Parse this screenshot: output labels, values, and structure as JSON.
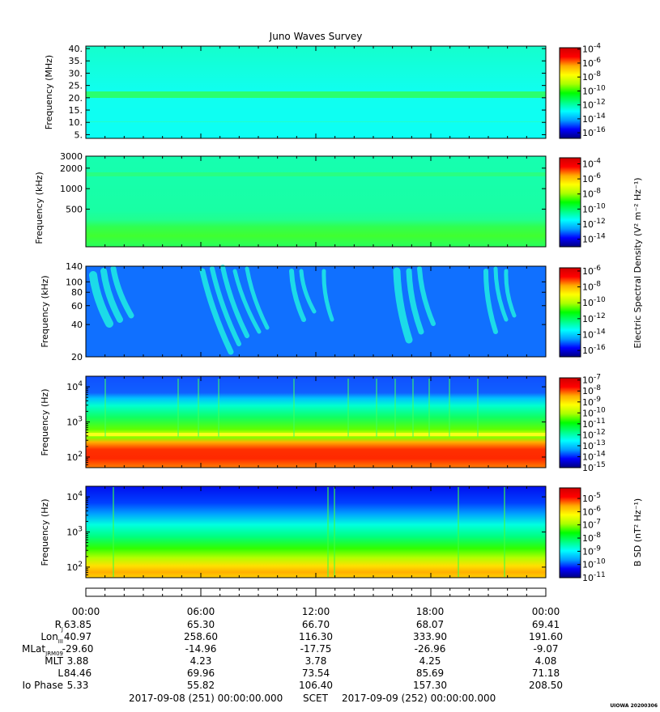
{
  "title": "Juno Waves Survey",
  "footer": {
    "start_time": "2017-09-08 (251) 00:00:00.000",
    "scet": "SCET",
    "end_time": "2017-09-09 (252) 00:00:00.000",
    "stamp": "UIOWA 20200306"
  },
  "colorscale_stops": [
    "#00007f",
    "#0000ff",
    "#00a0ff",
    "#00ffff",
    "#00ff80",
    "#00ff00",
    "#aaff00",
    "#ffff00",
    "#ffaa00",
    "#ff0000",
    "#d00000"
  ],
  "shared_colorbar_label": "Electric Spectral Density (V² m⁻² Hz⁻¹)",
  "chart_data": [
    {
      "type": "heatmap",
      "title": "Juno Waves Survey",
      "ylabel": "Frequency (MHz)",
      "yscale": "linear",
      "ylim": [
        3.5,
        41
      ],
      "yticks": [
        5,
        10,
        15,
        20,
        25,
        30,
        35,
        40
      ],
      "yticklabels": [
        "5.",
        "10.",
        "15.",
        "20.",
        "25.",
        "30.",
        "35.",
        "40."
      ],
      "colorbar": {
        "ticks": [
          "10^-4",
          "10^-6",
          "10^-8",
          "10^-10",
          "10^-12",
          "10^-14",
          "10^-16"
        ],
        "range_exp": [
          -16.8,
          -3.8
        ]
      },
      "features": "uniform cyan background (~1e-13) with a persistent green band near 21 MHz"
    },
    {
      "type": "heatmap",
      "ylabel": "Frequency (kHz)",
      "yscale": "log",
      "ylim": [
        140,
        3000
      ],
      "yticks": [
        500,
        1000,
        2000,
        3000
      ],
      "yticklabels": [
        "500",
        "1000",
        "2000",
        "3000"
      ],
      "colorbar": {
        "ticks": [
          "10^-4",
          "10^-6",
          "10^-8",
          "10^-10",
          "10^-12",
          "10^-14"
        ],
        "range_exp": [
          -15.0,
          -3.2
        ]
      },
      "features": "green-cyan background, faint line near 1700 kHz, brighter green band below ~250 kHz"
    },
    {
      "type": "heatmap",
      "ylabel": "Frequency (kHz)",
      "yscale": "log",
      "ylim": [
        20,
        140
      ],
      "yticks": [
        20,
        40,
        60,
        80,
        100,
        140
      ],
      "yticklabels": [
        "20",
        "40",
        "60",
        "80",
        "100",
        "140"
      ],
      "colorbar": {
        "ticks": [
          "10^-6",
          "10^-8",
          "10^-10",
          "10^-12",
          "10^-14",
          "10^-16"
        ],
        "range_exp": [
          -16.8,
          -5.6
        ]
      },
      "features": "blue background with cyan/green drifting emission arcs in several groups"
    },
    {
      "type": "heatmap",
      "ylabel": "Frequency (Hz)",
      "yscale": "log",
      "ylim": [
        50,
        20000
      ],
      "yticks": [
        100,
        1000,
        10000
      ],
      "yticklabels": [
        "10^2",
        "10^3",
        "10^4"
      ],
      "colorbar": {
        "ticks": [
          "10^-7",
          "10^-8",
          "10^-9",
          "10^-10",
          "10^-11",
          "10^-12",
          "10^-13",
          "10^-14",
          "10^-15"
        ],
        "range_exp": [
          -15.0,
          -6.8
        ]
      },
      "features": "intense red/orange band below ~300 Hz, yellow line near 550 Hz, green to cyan above, blue above ~3 kHz"
    },
    {
      "type": "heatmap",
      "ylabel": "Frequency (Hz)",
      "yscale": "log",
      "ylim": [
        50,
        20000
      ],
      "yticks": [
        100,
        1000,
        10000
      ],
      "yticklabels": [
        "10^2",
        "10^3",
        "10^4"
      ],
      "colorbar": {
        "label": "B SD (nT² Hz⁻¹)",
        "ticks": [
          "10^-5",
          "10^-6",
          "10^-7",
          "10^-8",
          "10^-9",
          "10^-10",
          "10^-11"
        ],
        "range_exp": [
          -11.0,
          -4.2
        ]
      },
      "features": "blue above ~5 kHz, green/yellow-orange below ~200 Hz with vertical spikes"
    }
  ],
  "ephemeris": {
    "times": [
      "00:00",
      "06:00",
      "12:00",
      "18:00",
      "00:00"
    ],
    "rows": [
      {
        "label": "R",
        "sub": "J",
        "values": [
          "63.85",
          "65.30",
          "66.70",
          "68.07",
          "69.41"
        ]
      },
      {
        "label": "Lon",
        "sub": "III",
        "values": [
          "40.97",
          "258.60",
          "116.30",
          "333.90",
          "191.60"
        ]
      },
      {
        "label": "MLat",
        "sub": "JRM09",
        "values": [
          "-29.60",
          "-14.96",
          "-17.75",
          "-26.96",
          "-9.07"
        ]
      },
      {
        "label": "MLT",
        "sub": "",
        "values": [
          "3.88",
          "4.23",
          "3.78",
          "4.25",
          "4.08"
        ]
      },
      {
        "label": "L",
        "sub": "",
        "values": [
          "84.46",
          "69.96",
          "73.54",
          "85.69",
          "71.18"
        ]
      },
      {
        "label": "Io Phase",
        "sub": "",
        "values": [
          "5.33",
          "55.82",
          "106.40",
          "157.30",
          "208.50"
        ]
      }
    ]
  }
}
